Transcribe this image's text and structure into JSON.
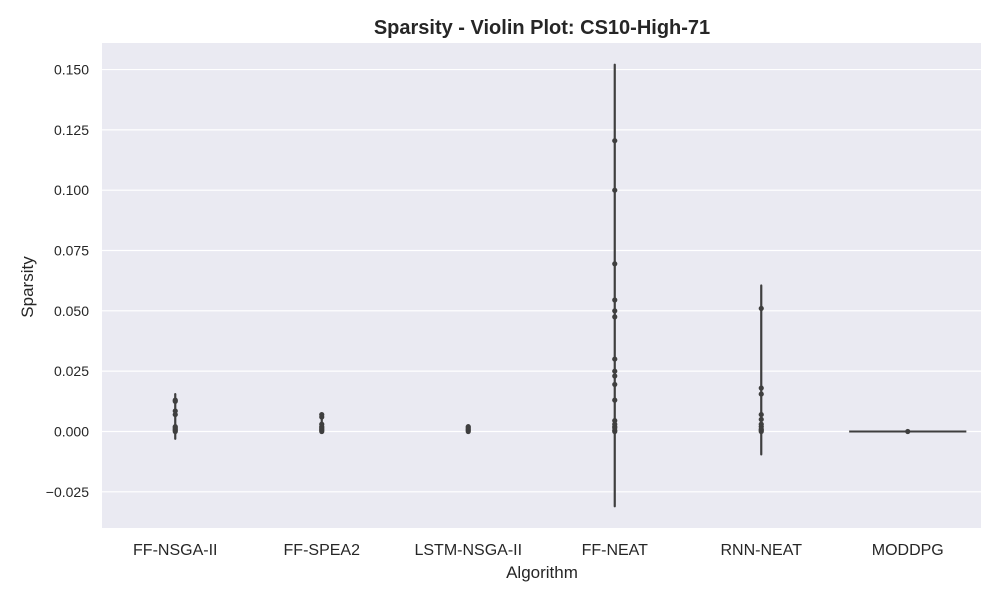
{
  "chart_data": {
    "type": "violin",
    "title": "Sparsity - Violin Plot: CS10-High-71",
    "xlabel": "Algorithm",
    "ylabel": "Sparsity",
    "ylim": [
      -0.04,
      0.161
    ],
    "yticks": [
      -0.025,
      0.0,
      0.025,
      0.05,
      0.075,
      0.1,
      0.125,
      0.15
    ],
    "ytick_labels": [
      "−0.025",
      "0.000",
      "0.025",
      "0.050",
      "0.075",
      "0.100",
      "0.125",
      "0.150"
    ],
    "grid": true,
    "background": "#eaeaf2",
    "line_color": "#3f3f3f",
    "categories": [
      "FF-NSGA-II",
      "FF-SPEA2",
      "LSTM-NSGA-II",
      "FF-NEAT",
      "RNN-NEAT",
      "MODDPG"
    ],
    "series": [
      {
        "category": "FF-NSGA-II",
        "range": [
          -0.003,
          0.0155
        ],
        "points": [
          0.0,
          0.0005,
          0.001,
          0.0015,
          0.002,
          0.007,
          0.0085,
          0.0125,
          0.013
        ]
      },
      {
        "category": "FF-SPEA2",
        "range": [
          -0.0005,
          0.0075
        ],
        "points": [
          0.0,
          0.0005,
          0.001,
          0.0015,
          0.002,
          0.003,
          0.006,
          0.007
        ]
      },
      {
        "category": "LSTM-NSGA-II",
        "range": [
          -0.0005,
          0.0025
        ],
        "points": [
          0.0,
          0.0005,
          0.001,
          0.0015,
          0.002
        ]
      },
      {
        "category": "FF-NEAT",
        "range": [
          -0.031,
          0.152
        ],
        "points": [
          0.0,
          0.0005,
          0.0015,
          0.002,
          0.003,
          0.0045,
          0.013,
          0.0195,
          0.023,
          0.025,
          0.03,
          0.0475,
          0.05,
          0.0545,
          0.0695,
          0.1,
          0.1205
        ]
      },
      {
        "category": "RNN-NEAT",
        "range": [
          -0.0095,
          0.0605
        ],
        "points": [
          0.0,
          0.0005,
          0.001,
          0.002,
          0.003,
          0.005,
          0.007,
          0.0155,
          0.018,
          0.051
        ]
      },
      {
        "category": "MODDPG",
        "range": [
          0.0,
          0.0
        ],
        "points": [
          0.0
        ]
      }
    ]
  }
}
